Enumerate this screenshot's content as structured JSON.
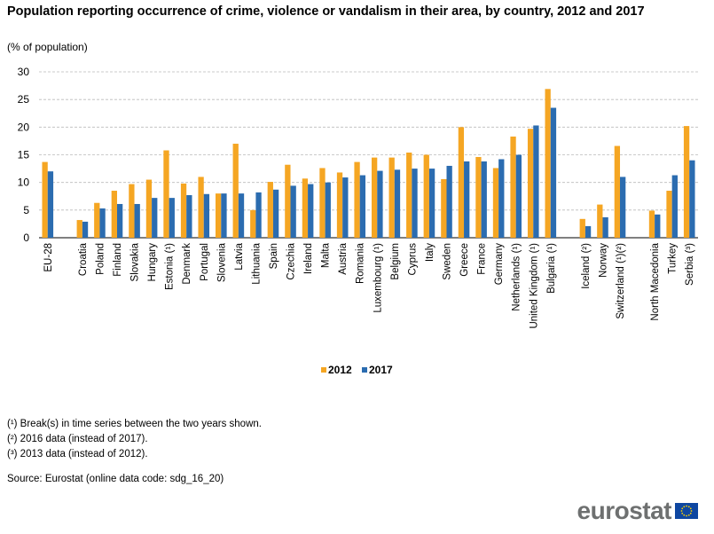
{
  "title": "Population reporting occurrence of crime, violence or vandalism in their area, by country, 2012 and 2017",
  "subtitle": "(% of population)",
  "footnotes": [
    "(¹) Break(s) in time series between the two years shown.",
    "(²) 2016 data (instead of 2017).",
    "(³) 2013 data (instead of 2012)."
  ],
  "source": "Source: Eurostat (online data code: sdg_16_20)",
  "logo": {
    "text": "eurostat",
    "icon": "eu-flag-icon"
  },
  "colors": {
    "s2012": "#F5A623",
    "s2017": "#2B6CB0",
    "grid": "#BBBBBB"
  },
  "chart_data": {
    "type": "bar",
    "ylim": [
      0,
      30
    ],
    "yticks": [
      0,
      5,
      10,
      15,
      20,
      25,
      30
    ],
    "grid": true,
    "legend_position": "bottom-center",
    "categories": [
      "EU-28",
      "",
      "Croatia",
      "Poland",
      "Finland",
      "Slovakia",
      "Hungary",
      "Estonia (¹)",
      "Denmark",
      "Portugal",
      "Slovenia",
      "Latvia",
      "Lithuania",
      "Spain",
      "Czechia",
      "Ireland",
      "Malta",
      "Austria",
      "Romania",
      "Luxembourg (¹)",
      "Belgium",
      "Cyprus",
      "Italy",
      "Sweden",
      "Greece",
      "France",
      "Germany",
      "Netherlands (¹)",
      "United Kingdom (¹)",
      "Bulgaria (¹)",
      "",
      "Iceland (²)",
      "Norway",
      "Switzerland (¹)(²)",
      "",
      "North Macedonia",
      "Turkey",
      "Serbia (³)"
    ],
    "series": [
      {
        "name": "2012",
        "values": [
          13.7,
          null,
          3.2,
          6.3,
          8.5,
          9.7,
          10.5,
          15.8,
          9.8,
          11.0,
          8.0,
          17.0,
          5.0,
          10.1,
          13.2,
          10.7,
          12.6,
          11.8,
          13.7,
          14.5,
          14.5,
          15.4,
          15.0,
          10.6,
          20.0,
          14.6,
          12.6,
          18.3,
          19.7,
          26.9,
          null,
          3.4,
          6.0,
          16.6,
          null,
          4.9,
          8.5,
          20.2
        ]
      },
      {
        "name": "2017",
        "values": [
          12.0,
          null,
          2.9,
          5.3,
          6.1,
          6.1,
          7.2,
          7.2,
          7.7,
          7.9,
          8.0,
          8.0,
          8.2,
          8.7,
          9.4,
          9.7,
          10.0,
          10.9,
          11.3,
          12.1,
          12.3,
          12.5,
          12.5,
          13.0,
          13.8,
          13.8,
          14.2,
          15.0,
          20.3,
          23.5,
          null,
          2.1,
          3.7,
          11.0,
          null,
          4.2,
          11.3,
          14.0
        ]
      }
    ]
  }
}
